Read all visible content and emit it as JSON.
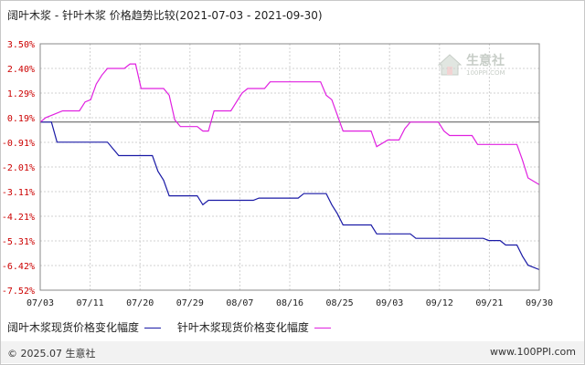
{
  "title": "阔叶木浆 - 针叶木浆 价格趋势比较(2021-07-03 - 2021-09-30)",
  "watermark": {
    "name": "生意社",
    "url": "100PPI.COM"
  },
  "footer": {
    "copyright": "© 2025.07 生意社",
    "site": "www.100PPI.com"
  },
  "colors": {
    "series1": "#1a1aa6",
    "series2": "#e020e0",
    "axis_labels": "#cc0000",
    "grid": "#d0d0d0"
  },
  "chart_data": {
    "type": "line",
    "title": "阔叶木浆 - 针叶木浆 价格趋势比较(2021-07-03 - 2021-09-30)",
    "xlabel": "",
    "ylabel": "",
    "x_ticks": [
      "07/03",
      "07/11",
      "07/20",
      "07/29",
      "08/07",
      "08/16",
      "08/25",
      "09/03",
      "09/12",
      "09/21",
      "09/30"
    ],
    "y_ticks": [
      "3.50%",
      "2.40%",
      "1.29%",
      "0.19%",
      "-0.91%",
      "-2.01%",
      "-3.11%",
      "-4.21%",
      "-5.31%",
      "-6.42%",
      "-7.52%"
    ],
    "ylim": [
      -7.52,
      3.5
    ],
    "xlim": [
      "2021-07-03",
      "2021-09-30"
    ],
    "grid": true,
    "legend_position": "bottom",
    "series": [
      {
        "name": "阔叶木浆现货价格变化幅度",
        "color": "#1a1aa6",
        "points": [
          [
            "2021-07-03",
            0.0
          ],
          [
            "2021-07-05",
            0.0
          ],
          [
            "2021-07-06",
            -0.9
          ],
          [
            "2021-07-15",
            -0.9
          ],
          [
            "2021-07-16",
            -1.2
          ],
          [
            "2021-07-17",
            -1.5
          ],
          [
            "2021-07-23",
            -1.5
          ],
          [
            "2021-07-24",
            -2.2
          ],
          [
            "2021-07-25",
            -2.6
          ],
          [
            "2021-07-26",
            -3.3
          ],
          [
            "2021-07-31",
            -3.3
          ],
          [
            "2021-08-01",
            -3.7
          ],
          [
            "2021-08-02",
            -3.5
          ],
          [
            "2021-08-10",
            -3.5
          ],
          [
            "2021-08-11",
            -3.4
          ],
          [
            "2021-08-18",
            -3.4
          ],
          [
            "2021-08-19",
            -3.2
          ],
          [
            "2021-08-23",
            -3.2
          ],
          [
            "2021-08-24",
            -3.7
          ],
          [
            "2021-08-25",
            -4.1
          ],
          [
            "2021-08-26",
            -4.6
          ],
          [
            "2021-08-31",
            -4.6
          ],
          [
            "2021-09-01",
            -5.0
          ],
          [
            "2021-09-07",
            -5.0
          ],
          [
            "2021-09-08",
            -5.2
          ],
          [
            "2021-09-20",
            -5.2
          ],
          [
            "2021-09-21",
            -5.3
          ],
          [
            "2021-09-23",
            -5.3
          ],
          [
            "2021-09-24",
            -5.5
          ],
          [
            "2021-09-26",
            -5.5
          ],
          [
            "2021-09-27",
            -6.0
          ],
          [
            "2021-09-28",
            -6.4
          ],
          [
            "2021-09-30",
            -6.6
          ]
        ]
      },
      {
        "name": "针叶木浆现货价格变化幅度",
        "color": "#e020e0",
        "points": [
          [
            "2021-07-03",
            0.0
          ],
          [
            "2021-07-04",
            0.2
          ],
          [
            "2021-07-05",
            0.3
          ],
          [
            "2021-07-07",
            0.5
          ],
          [
            "2021-07-10",
            0.5
          ],
          [
            "2021-07-11",
            0.9
          ],
          [
            "2021-07-12",
            1.0
          ],
          [
            "2021-07-13",
            1.7
          ],
          [
            "2021-07-14",
            2.1
          ],
          [
            "2021-07-15",
            2.4
          ],
          [
            "2021-07-18",
            2.4
          ],
          [
            "2021-07-19",
            2.6
          ],
          [
            "2021-07-20",
            2.6
          ],
          [
            "2021-07-21",
            1.5
          ],
          [
            "2021-07-25",
            1.5
          ],
          [
            "2021-07-26",
            1.2
          ],
          [
            "2021-07-27",
            0.1
          ],
          [
            "2021-07-28",
            -0.2
          ],
          [
            "2021-07-31",
            -0.2
          ],
          [
            "2021-08-01",
            -0.4
          ],
          [
            "2021-08-02",
            -0.4
          ],
          [
            "2021-08-03",
            0.5
          ],
          [
            "2021-08-06",
            0.5
          ],
          [
            "2021-08-07",
            0.9
          ],
          [
            "2021-08-08",
            1.3
          ],
          [
            "2021-08-09",
            1.5
          ],
          [
            "2021-08-12",
            1.5
          ],
          [
            "2021-08-13",
            1.8
          ],
          [
            "2021-08-22",
            1.8
          ],
          [
            "2021-08-23",
            1.2
          ],
          [
            "2021-08-24",
            1.0
          ],
          [
            "2021-08-26",
            -0.4
          ],
          [
            "2021-08-31",
            -0.4
          ],
          [
            "2021-09-01",
            -1.1
          ],
          [
            "2021-09-03",
            -0.8
          ],
          [
            "2021-09-05",
            -0.8
          ],
          [
            "2021-09-06",
            -0.3
          ],
          [
            "2021-09-07",
            0.0
          ],
          [
            "2021-09-12",
            0.0
          ],
          [
            "2021-09-13",
            -0.4
          ],
          [
            "2021-09-14",
            -0.6
          ],
          [
            "2021-09-18",
            -0.6
          ],
          [
            "2021-09-19",
            -1.0
          ],
          [
            "2021-09-23",
            -1.0
          ],
          [
            "2021-09-26",
            -1.0
          ],
          [
            "2021-09-27",
            -1.7
          ],
          [
            "2021-09-28",
            -2.5
          ],
          [
            "2021-09-30",
            -2.8
          ]
        ]
      }
    ]
  }
}
